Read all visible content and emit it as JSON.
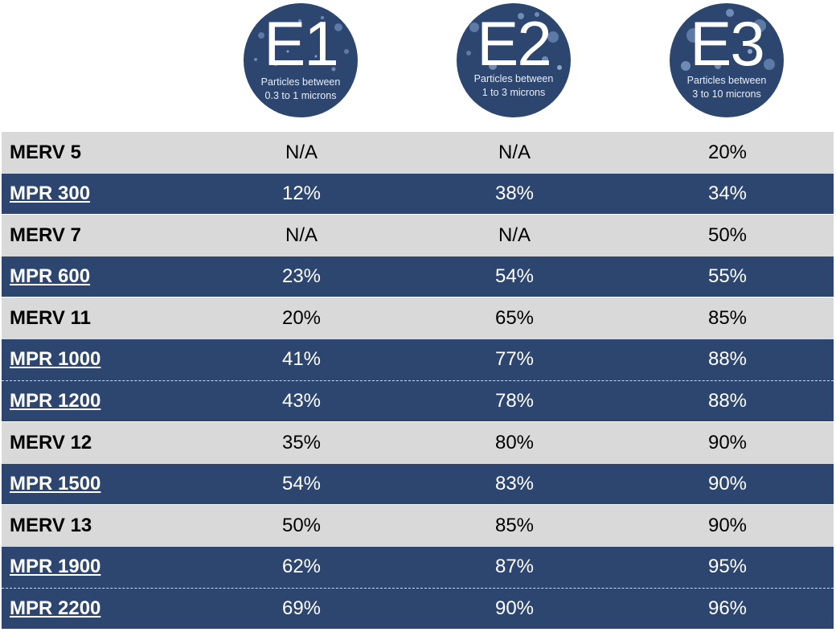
{
  "columns": [
    {
      "code": "E1",
      "line1": "Particles between",
      "line2": "0.3 to 1 microns"
    },
    {
      "code": "E2",
      "line1": "Particles between",
      "line2": "1 to 3 microns"
    },
    {
      "code": "E3",
      "line1": "Particles between",
      "line2": "3 to 10 microns"
    }
  ],
  "rows": [
    {
      "name": "MERV 5",
      "style": "light",
      "link": false,
      "values": [
        "N/A",
        "N/A",
        "20%"
      ]
    },
    {
      "name": "MPR 300",
      "style": "dark",
      "link": true,
      "values": [
        "12%",
        "38%",
        "34%"
      ]
    },
    {
      "name": "MERV 7",
      "style": "light",
      "link": false,
      "values": [
        "N/A",
        "N/A",
        "50%"
      ]
    },
    {
      "name": "MPR 600",
      "style": "dark",
      "link": true,
      "values": [
        "23%",
        "54%",
        "55%"
      ]
    },
    {
      "name": "MERV 11",
      "style": "light",
      "link": false,
      "values": [
        "20%",
        "65%",
        "85%"
      ]
    },
    {
      "name": "MPR 1000",
      "style": "dark",
      "link": true,
      "values": [
        "41%",
        "77%",
        "88%"
      ]
    },
    {
      "name": "MPR 1200",
      "style": "dark",
      "link": true,
      "values": [
        "43%",
        "78%",
        "88%"
      ]
    },
    {
      "name": "MERV 12",
      "style": "light",
      "link": false,
      "values": [
        "35%",
        "80%",
        "90%"
      ]
    },
    {
      "name": "MPR 1500",
      "style": "dark",
      "link": true,
      "values": [
        "54%",
        "83%",
        "90%"
      ]
    },
    {
      "name": "MERV 13",
      "style": "light",
      "link": false,
      "values": [
        "50%",
        "85%",
        "90%"
      ]
    },
    {
      "name": "MPR 1900",
      "style": "dark",
      "link": true,
      "values": [
        "62%",
        "87%",
        "95%"
      ]
    },
    {
      "name": "MPR 2200",
      "style": "dark",
      "link": true,
      "values": [
        "69%",
        "90%",
        "96%"
      ]
    }
  ],
  "colors": {
    "navy": "#2c4670",
    "gray": "#d9d9d9"
  }
}
